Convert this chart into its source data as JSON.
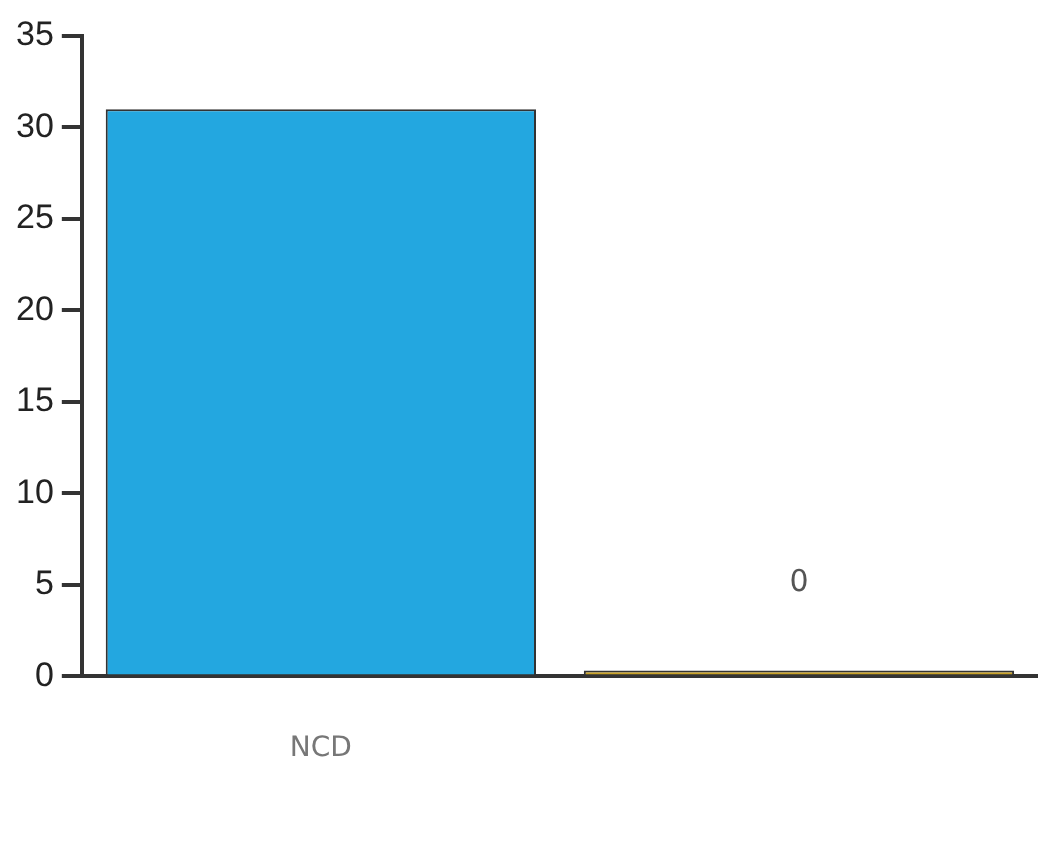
{
  "chart_data": {
    "type": "bar",
    "categories": [
      "NCD",
      null
    ],
    "values": [
      31,
      0
    ],
    "colors": [
      "#23a7e0",
      "#c9a227"
    ],
    "value_labels": [
      null,
      "0"
    ],
    "ylim": [
      0,
      35
    ],
    "yticks": [
      0,
      5,
      10,
      15,
      20,
      25,
      30,
      35
    ],
    "grid": false,
    "legend": false
  }
}
